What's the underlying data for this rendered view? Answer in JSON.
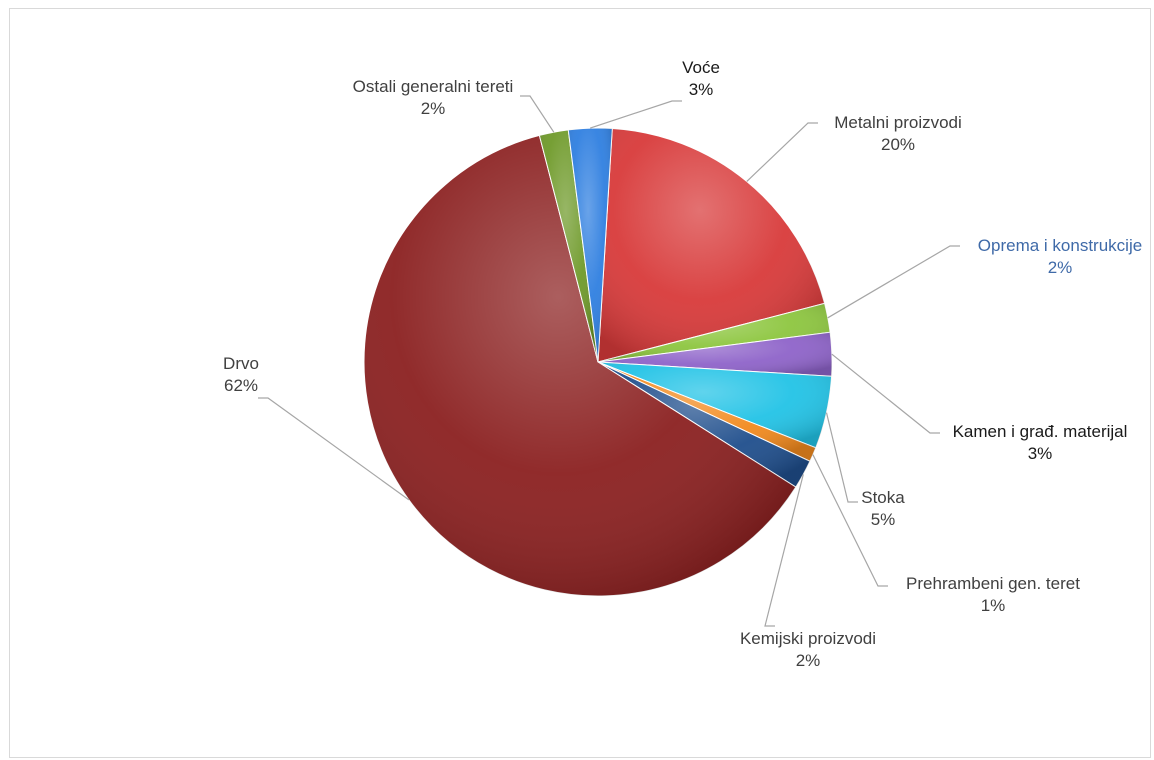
{
  "chart_data": {
    "type": "pie",
    "title": "",
    "slices": [
      {
        "label": "Metalni proizvodi",
        "value": 20,
        "pct_label": "20%",
        "color": "#d83a3a",
        "label_color": "#404040"
      },
      {
        "label": "Oprema i konstrukcije",
        "value": 2,
        "pct_label": "2%",
        "color": "#8dc63f",
        "label_color": "#3f6aa8"
      },
      {
        "label": "Kamen i građ. materijal",
        "value": 3,
        "pct_label": "3%",
        "color": "#8e63c9",
        "label_color": "#1a1a1a"
      },
      {
        "label": "Stoka",
        "value": 5,
        "pct_label": "5%",
        "color": "#22c3e6",
        "label_color": "#404040"
      },
      {
        "label": "Prehrambeni gen. teret",
        "value": 1,
        "pct_label": "1%",
        "color": "#f28a1e",
        "label_color": "#404040"
      },
      {
        "label": "Kemijski proizvodi",
        "value": 2,
        "pct_label": "2%",
        "color": "#1f4e8c",
        "label_color": "#404040"
      },
      {
        "label": "Drvo",
        "value": 62,
        "pct_label": "62%",
        "color": "#8b2020",
        "label_color": "#404040"
      },
      {
        "label": "Ostali generalni tereti",
        "value": 2,
        "pct_label": "2%",
        "color": "#6f9a2a",
        "label_color": "#404040"
      },
      {
        "label": "Voće",
        "value": 3,
        "pct_label": "3%",
        "color": "#2f7fe0",
        "label_color": "#1a1a1a"
      }
    ]
  }
}
